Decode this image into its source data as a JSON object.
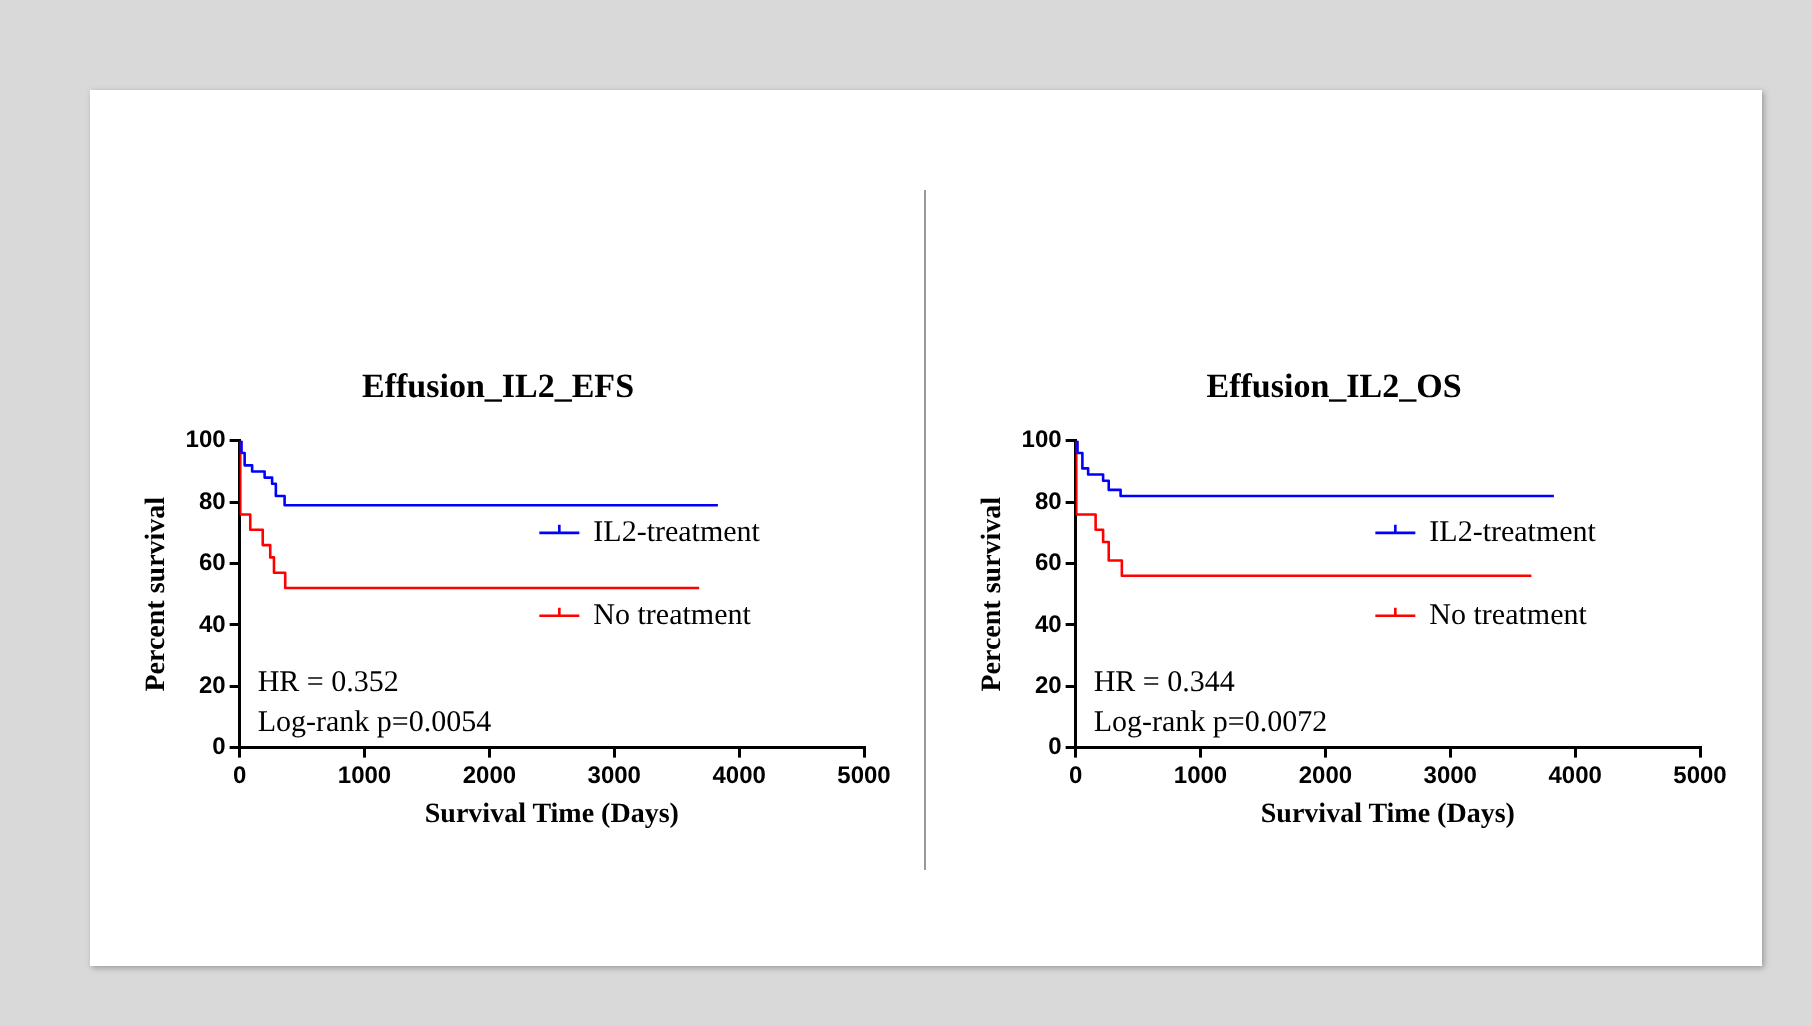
{
  "chart_data": [
    {
      "type": "step",
      "title": "Effusion_IL2_EFS",
      "xlabel": "Survival Time (Days)",
      "ylabel": "Percent survival",
      "xlim": [
        0,
        5000
      ],
      "xticks": [
        0,
        1000,
        2000,
        3000,
        4000,
        5000
      ],
      "ylim": [
        0,
        100
      ],
      "yticks": [
        0,
        20,
        40,
        60,
        80,
        100
      ],
      "grid": false,
      "legend": "right",
      "annotations": [
        "HR = 0.352",
        "Log-rank p=0.0054"
      ],
      "series": [
        {
          "name": "IL2-treatment",
          "color": "#0000ff",
          "x": [
            0,
            15,
            40,
            100,
            200,
            260,
            290,
            360,
            3830
          ],
          "values": [
            100,
            96,
            92,
            90,
            88,
            86,
            82,
            79,
            79
          ]
        },
        {
          "name": "No treatment",
          "color": "#ff0000",
          "x": [
            0,
            5,
            85,
            185,
            245,
            275,
            365,
            3680
          ],
          "values": [
            100,
            76,
            71,
            66,
            62,
            57,
            52,
            52
          ]
        }
      ]
    },
    {
      "type": "step",
      "title": "Effusion_IL2_OS",
      "xlabel": "Survival Time (Days)",
      "ylabel": "Percent survival",
      "xlim": [
        0,
        5000
      ],
      "xticks": [
        0,
        1000,
        2000,
        3000,
        4000,
        5000
      ],
      "ylim": [
        0,
        100
      ],
      "yticks": [
        0,
        20,
        40,
        60,
        80,
        100
      ],
      "grid": false,
      "legend": "right",
      "annotations": [
        "HR = 0.344",
        "Log-rank p=0.0072"
      ],
      "series": [
        {
          "name": "IL2-treatment",
          "color": "#0000ff",
          "x": [
            0,
            15,
            54,
            100,
            220,
            265,
            360,
            3830
          ],
          "values": [
            100,
            96,
            91,
            89,
            87,
            84,
            82,
            82
          ]
        },
        {
          "name": "No treatment",
          "color": "#ff0000",
          "x": [
            0,
            5,
            160,
            220,
            265,
            370,
            3650
          ],
          "values": [
            100,
            76,
            71,
            67,
            61,
            56,
            56
          ]
        }
      ]
    }
  ]
}
